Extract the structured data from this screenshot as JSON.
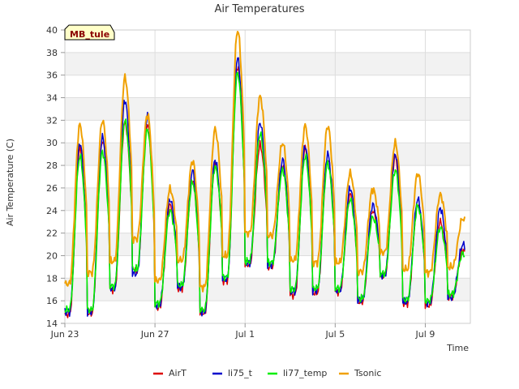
{
  "chart_data": {
    "type": "line",
    "title": "Air Temperatures",
    "xlabel": "Time",
    "ylabel": "Air Temperature (C)",
    "badge": "MB_tule",
    "ylim": [
      14,
      40
    ],
    "yticks": [
      14,
      16,
      18,
      20,
      22,
      24,
      26,
      28,
      30,
      32,
      34,
      36,
      38,
      40
    ],
    "xlim": [
      "2023-06-23",
      "2023-07-11"
    ],
    "xticks": [
      {
        "date": "2023-06-23",
        "label": "Jun 23"
      },
      {
        "date": "2023-06-27",
        "label": "Jun 27"
      },
      {
        "date": "2023-07-01",
        "label": "Jul 1"
      },
      {
        "date": "2023-07-05",
        "label": "Jul 5"
      },
      {
        "date": "2023-07-09",
        "label": "Jul 9"
      }
    ],
    "grid": true,
    "legend_position": "bottom",
    "series": [
      {
        "name": "AirT",
        "color": "#dd0000",
        "width": 1.5,
        "min": [
          14.8,
          14.9,
          17.0,
          18.6,
          15.4,
          17.1,
          14.9,
          17.8,
          19.2,
          19.0,
          16.5,
          16.7,
          16.8,
          15.9,
          18.2,
          15.8,
          15.6,
          16.4
        ],
        "max": [
          29.5,
          30.2,
          31.8,
          31.7,
          24.5,
          26.7,
          28.1,
          36.8,
          29.8,
          28.0,
          29.5,
          28.6,
          25.4,
          24.0,
          28.8,
          24.6,
          23.0,
          20.5
        ]
      },
      {
        "name": "li75_t",
        "color": "#0000cc",
        "width": 1.5,
        "min": [
          15.0,
          15.0,
          17.1,
          18.4,
          15.6,
          17.2,
          15.0,
          17.9,
          19.3,
          19.2,
          16.8,
          16.9,
          16.9,
          16.0,
          18.3,
          15.9,
          15.8,
          16.3
        ],
        "max": [
          30.0,
          30.5,
          33.8,
          32.4,
          25.0,
          27.5,
          28.5,
          37.5,
          31.8,
          28.5,
          29.7,
          29.0,
          26.0,
          24.5,
          29.0,
          25.0,
          24.2,
          21.0
        ]
      },
      {
        "name": "li77_temp",
        "color": "#00ee00",
        "width": 1.6,
        "min": [
          15.2,
          15.2,
          17.3,
          18.8,
          15.8,
          17.4,
          15.2,
          18.1,
          19.5,
          19.4,
          17.0,
          17.1,
          17.1,
          16.2,
          18.4,
          16.1,
          16.0,
          16.6
        ],
        "max": [
          28.8,
          29.2,
          32.0,
          31.2,
          24.0,
          26.5,
          27.9,
          36.2,
          30.8,
          27.6,
          28.8,
          28.2,
          25.0,
          23.4,
          27.6,
          24.4,
          22.5,
          20.2
        ]
      },
      {
        "name": "Tsonic",
        "color": "#f0a000",
        "width": 2.0,
        "min": [
          17.5,
          18.5,
          19.5,
          21.5,
          17.8,
          19.6,
          17.2,
          20.0,
          22.0,
          21.8,
          19.6,
          19.4,
          19.4,
          18.6,
          20.3,
          18.8,
          18.5,
          19.0
        ],
        "max": [
          31.6,
          32.0,
          35.8,
          32.5,
          25.9,
          28.4,
          31.2,
          40.0,
          34.1,
          30.0,
          31.5,
          31.5,
          27.3,
          25.9,
          30.0,
          27.3,
          25.4,
          23.3
        ]
      }
    ]
  }
}
